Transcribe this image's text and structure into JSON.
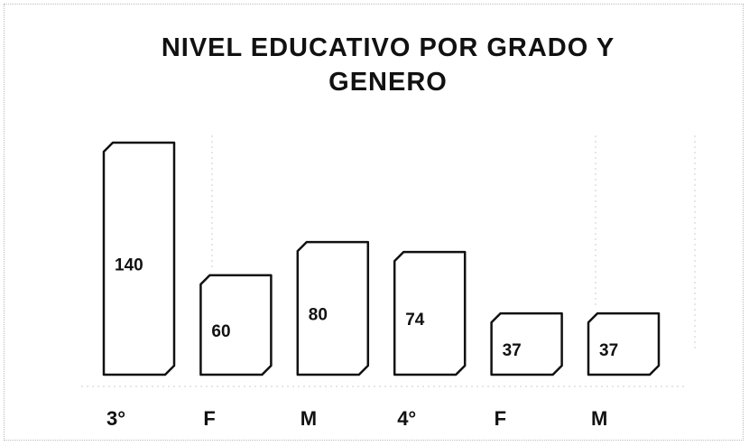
{
  "chart_data": {
    "type": "bar",
    "title": "NIVEL EDUCATIVO POR GRADO Y GENERO",
    "categories": [
      "3°",
      "F",
      "M",
      "4°",
      "F",
      "M"
    ],
    "values": [
      140,
      60,
      80,
      74,
      37,
      37
    ],
    "color": "#ffffff"
  }
}
